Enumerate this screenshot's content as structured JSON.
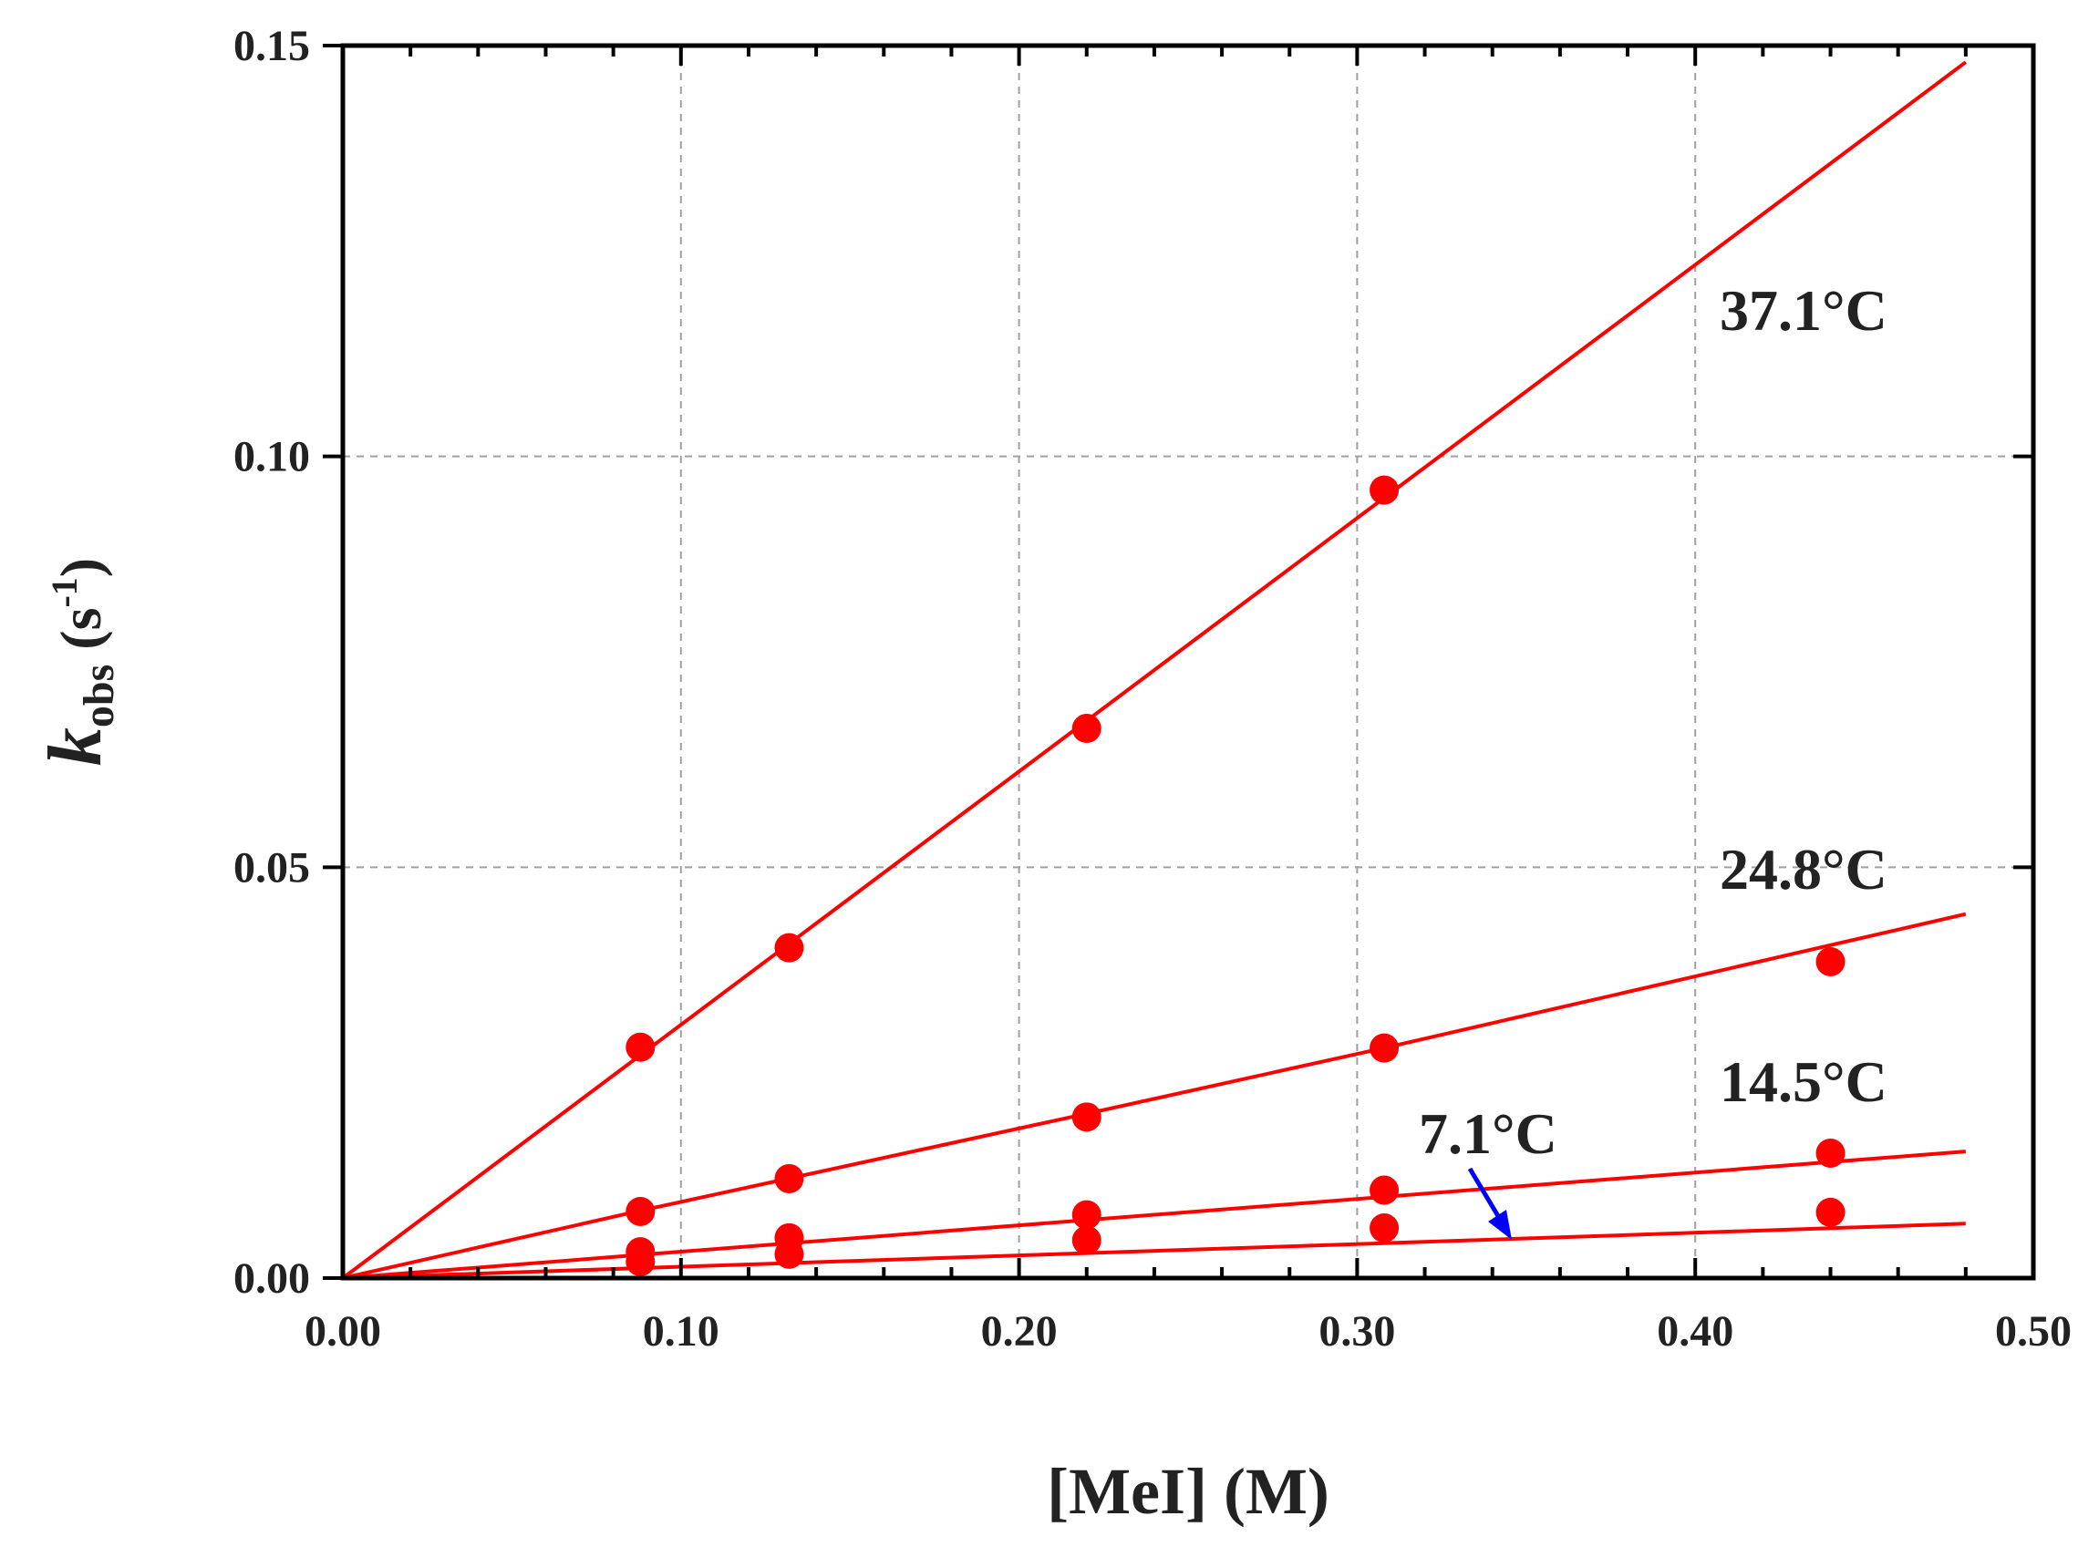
{
  "chart_data": {
    "type": "scatter",
    "title": "",
    "xlabel": "[MeI] (M)",
    "ylabel_main": "k",
    "ylabel_sub": "obs",
    "ylabel_unit_open": " (s",
    "ylabel_unit_sup": "-1",
    "ylabel_unit_close": ")",
    "xlim": [
      0,
      0.5
    ],
    "ylim": [
      0,
      0.15
    ],
    "x_ticks": [
      0.0,
      0.1,
      0.2,
      0.3,
      0.4,
      0.5
    ],
    "x_tick_labels": [
      "0.00",
      "0.10",
      "0.20",
      "0.30",
      "0.40",
      "0.50"
    ],
    "y_ticks": [
      0.0,
      0.05,
      0.1,
      0.15
    ],
    "y_tick_labels": [
      "0.00",
      "0.05",
      "0.10",
      "0.15"
    ],
    "grid": true,
    "fit_x_max": 0.48,
    "x": [
      0.088,
      0.132,
      0.22,
      0.308,
      0.44
    ],
    "series": [
      {
        "name": "37.1°C",
        "values": [
          0.0281,
          0.0402,
          0.0669,
          0.0959,
          null
        ],
        "slope": 0.3083
      },
      {
        "name": "24.8°C",
        "values": [
          0.0081,
          0.0121,
          0.0196,
          0.028,
          0.0385
        ],
        "slope_note": "curved fit",
        "fit": [
          [
            0,
            0
          ],
          [
            0.088,
            0.0082
          ],
          [
            0.22,
            0.02
          ],
          [
            0.308,
            0.028
          ],
          [
            0.48,
            0.0443
          ]
        ]
      },
      {
        "name": "14.5°C",
        "values": [
          0.0032,
          0.0049,
          0.0077,
          0.0107,
          0.0152
        ],
        "slope": 0.0321
      },
      {
        "name": "7.1°C",
        "values": [
          0.002,
          0.0029,
          0.0046,
          0.0061,
          0.008
        ],
        "slope": 0.0138
      }
    ],
    "annotations": [
      {
        "text": "37.1°C",
        "series": "37.1°C"
      },
      {
        "text": "24.8°C",
        "series": "24.8°C"
      },
      {
        "text": "14.5°C",
        "series": "14.5°C"
      },
      {
        "text": "7.1°C",
        "series": "7.1°C",
        "arrow": true
      }
    ],
    "colors": {
      "series": "#ff0000",
      "arrow": "#0000ff",
      "axis": "#000000",
      "grid": "#a0a0a0",
      "text": "#222222"
    }
  }
}
